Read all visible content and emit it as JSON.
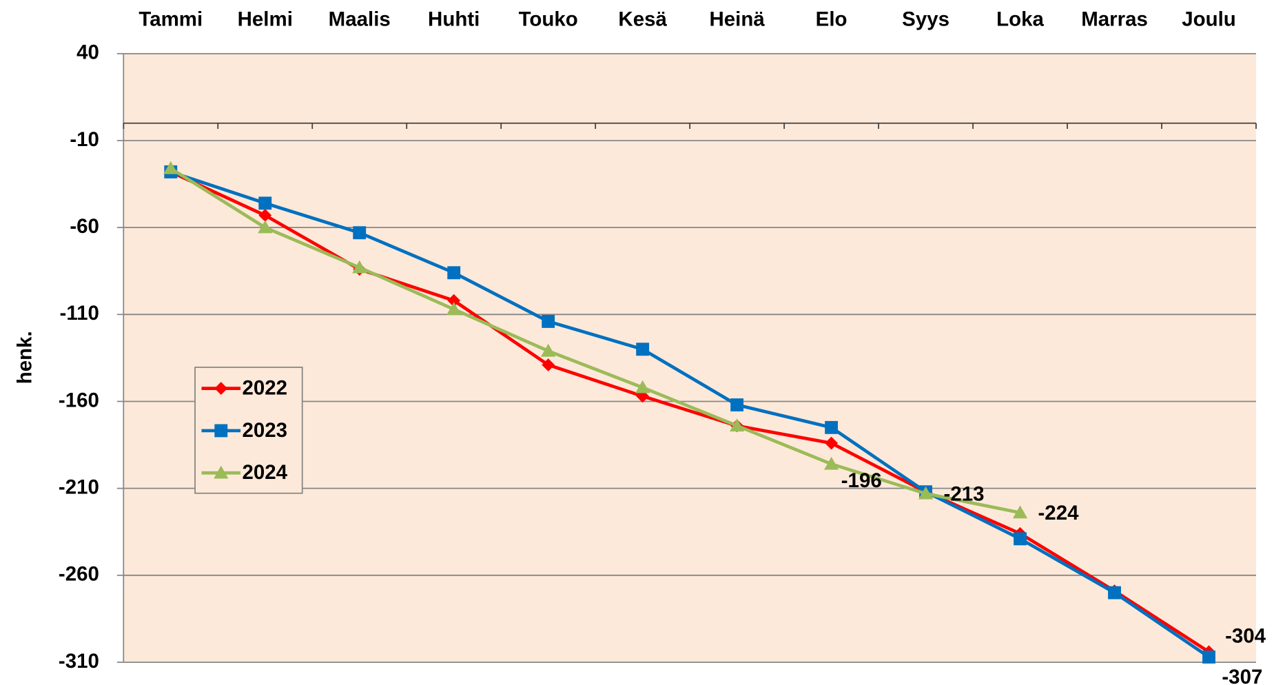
{
  "chart_data": {
    "type": "line",
    "y_label": "henk.",
    "categories": [
      "Tammi",
      "Helmi",
      "Maalis",
      "Huhti",
      "Touko",
      "Kesä",
      "Heinä",
      "Elo",
      "Syys",
      "Loka",
      "Marras",
      "Joulu"
    ],
    "series": [
      {
        "name": "2022",
        "color": "#ff0000",
        "marker": "diamond",
        "values": [
          -28,
          -53,
          -84,
          -102,
          -139,
          -157,
          -174,
          -184,
          -212,
          -236,
          -269,
          -304
        ]
      },
      {
        "name": "2023",
        "color": "#0070c0",
        "marker": "square",
        "values": [
          -28,
          -46,
          -63,
          -86,
          -114,
          -130,
          -162,
          -175,
          -212,
          -239,
          -270,
          -307
        ]
      },
      {
        "name": "2024",
        "color": "#9bbb59",
        "marker": "triangle",
        "values": [
          -26,
          -60,
          -83,
          -107,
          -131,
          -152,
          -174,
          -196,
          -213,
          -224,
          null,
          null
        ]
      }
    ],
    "ylim": [
      -310,
      40
    ],
    "yticks": [
      40,
      -10,
      -60,
      -110,
      -160,
      -210,
      -260,
      -310
    ],
    "grid": true
  }
}
